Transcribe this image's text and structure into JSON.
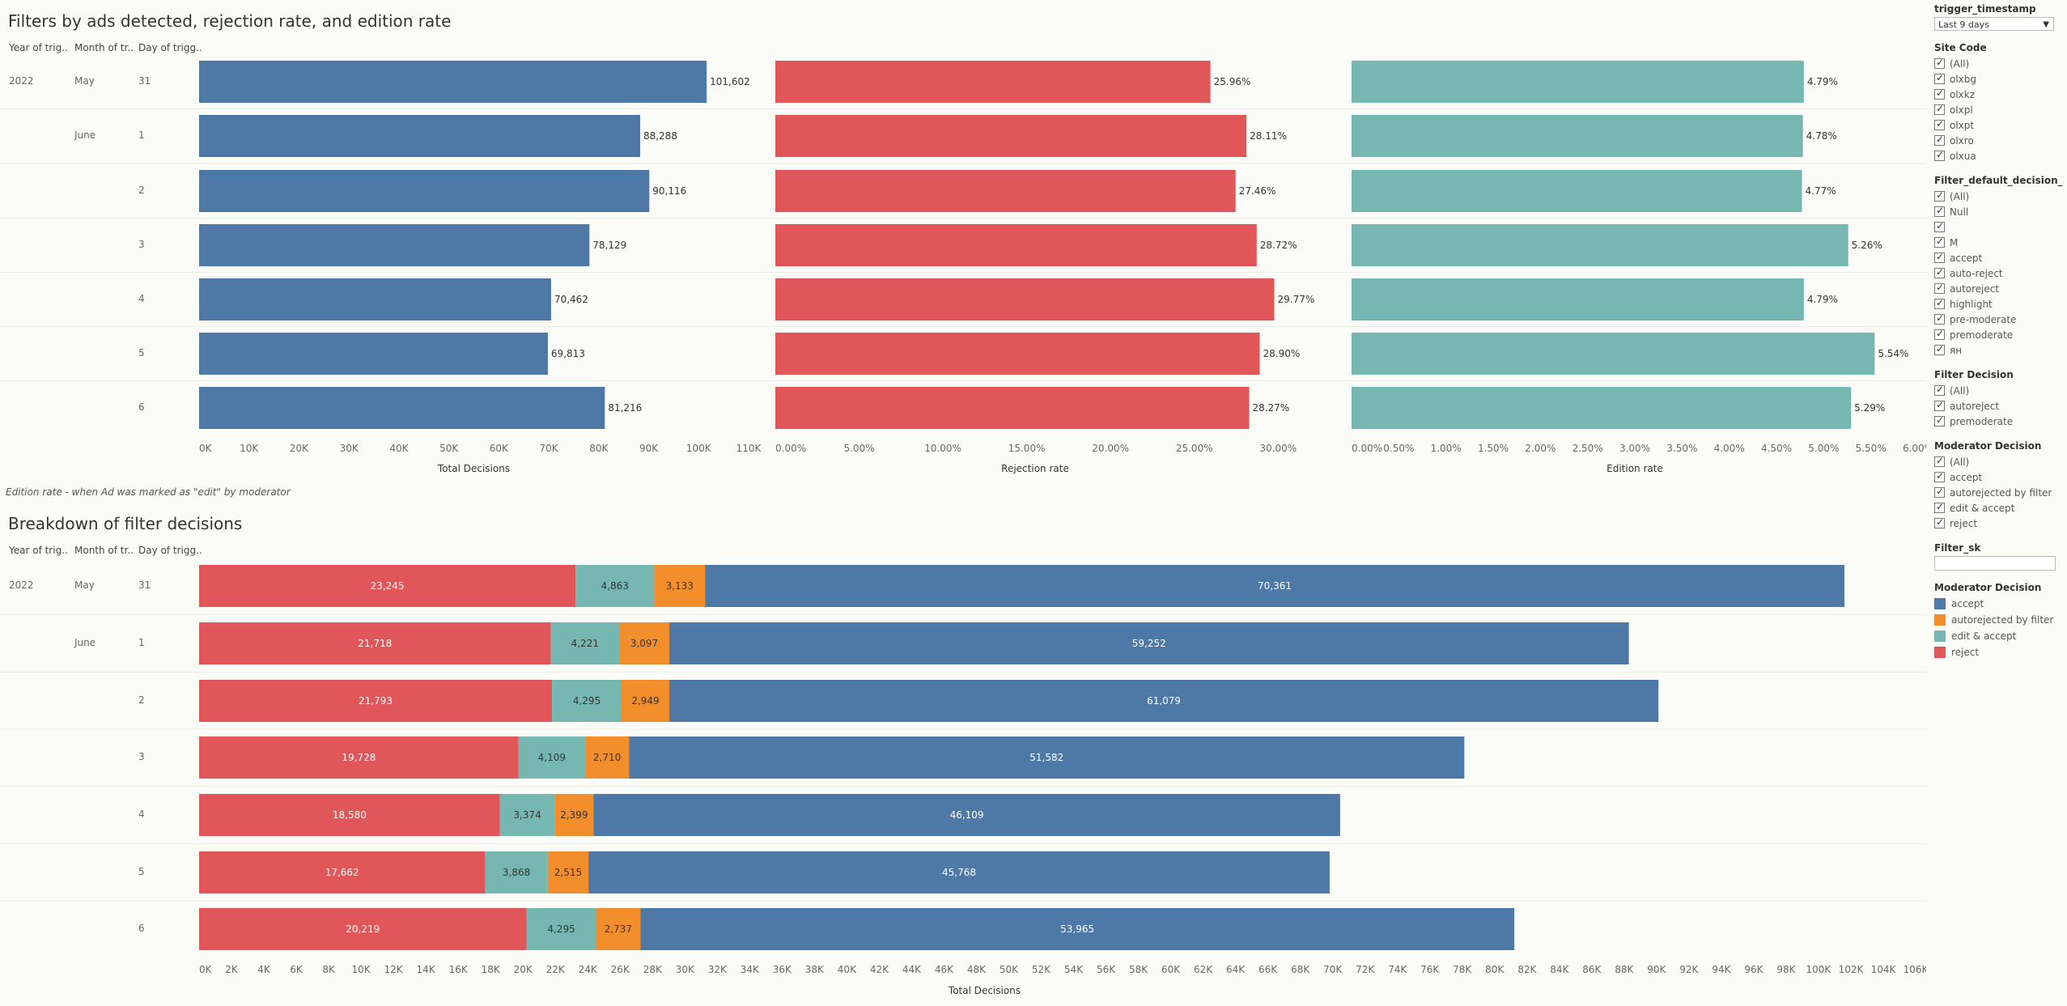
{
  "top": {
    "title": "Filters by ads detected, rejection rate, and edition rate",
    "headers": {
      "year": "Year of trig..",
      "month": "Month of tr..",
      "day": "Day of trigg.."
    },
    "note": "Edition rate - when Ad was marked as \"edit\" by moderator"
  },
  "bottom": {
    "title": "Breakdown of filter decisions",
    "headers": {
      "year": "Year of trig..",
      "month": "Month of tr..",
      "day": "Day of trigg.."
    }
  },
  "rows": [
    {
      "year": "2022",
      "month": "May",
      "day": "31"
    },
    {
      "year": "",
      "month": "June",
      "day": "1"
    },
    {
      "year": "",
      "month": "",
      "day": "2"
    },
    {
      "year": "",
      "month": "",
      "day": "3"
    },
    {
      "year": "",
      "month": "",
      "day": "4"
    },
    {
      "year": "",
      "month": "",
      "day": "5"
    },
    {
      "year": "",
      "month": "",
      "day": "6"
    }
  ],
  "chart_data": [
    {
      "type": "bar",
      "orientation": "horizontal",
      "xlabel": "Total Decisions",
      "xlim": [
        0,
        110000
      ],
      "ticks": [
        0,
        10000,
        20000,
        30000,
        40000,
        50000,
        60000,
        70000,
        80000,
        90000,
        100000,
        110000
      ],
      "tick_labels": [
        "0K",
        "10K",
        "20K",
        "30K",
        "40K",
        "50K",
        "60K",
        "70K",
        "80K",
        "90K",
        "100K",
        "110K"
      ],
      "values": [
        101602,
        88288,
        90116,
        78129,
        70462,
        69813,
        81216
      ],
      "labels": [
        "101,602",
        "88,288",
        "90,116",
        "78,129",
        "70,462",
        "69,813",
        "81,216"
      ],
      "color": "#4e79a7"
    },
    {
      "type": "bar",
      "orientation": "horizontal",
      "xlabel": "Rejection rate",
      "xlim": [
        0,
        31
      ],
      "ticks": [
        0,
        5,
        10,
        15,
        20,
        25,
        30
      ],
      "tick_labels": [
        "0.00%",
        "5.00%",
        "10.00%",
        "15.00%",
        "20.00%",
        "25.00%",
        "30.00%"
      ],
      "values": [
        25.96,
        28.11,
        27.46,
        28.72,
        29.77,
        28.9,
        28.27
      ],
      "labels": [
        "25.96%",
        "28.11%",
        "27.46%",
        "28.72%",
        "29.77%",
        "28.90%",
        "28.27%"
      ],
      "color": "#e15759"
    },
    {
      "type": "bar",
      "orientation": "horizontal",
      "xlabel": "Edition rate",
      "xlim": [
        0,
        6
      ],
      "ticks": [
        0,
        0.5,
        1,
        1.5,
        2,
        2.5,
        3,
        3.5,
        4,
        4.5,
        5,
        5.5,
        6
      ],
      "tick_labels": [
        "0.00%",
        "0.50%",
        "1.00%",
        "1.50%",
        "2.00%",
        "2.50%",
        "3.00%",
        "3.50%",
        "4.00%",
        "4.50%",
        "5.00%",
        "5.50%",
        "6.00%"
      ],
      "values": [
        4.79,
        4.78,
        4.77,
        5.26,
        4.79,
        5.54,
        5.29
      ],
      "labels": [
        "4.79%",
        "4.78%",
        "4.77%",
        "5.26%",
        "4.79%",
        "5.54%",
        "5.29%"
      ],
      "color": "#76b7b2"
    },
    {
      "type": "bar",
      "orientation": "horizontal",
      "stacked": true,
      "xlabel": "Total Decisions",
      "xlim": [
        0,
        107000
      ],
      "tick_step": 2000,
      "tick_max": 106000,
      "series": [
        {
          "name": "reject",
          "color": "#e15759",
          "values": [
            23245,
            21718,
            21793,
            19728,
            18580,
            17662,
            20219
          ],
          "labels": [
            "23,245",
            "21,718",
            "21,793",
            "19,728",
            "18,580",
            "17,662",
            "20,219"
          ]
        },
        {
          "name": "edit & accept",
          "color": "#76b7b2",
          "values": [
            4863,
            4221,
            4295,
            4109,
            3374,
            3868,
            4295
          ],
          "labels": [
            "4,863",
            "4,221",
            "4,295",
            "4,109",
            "3,374",
            "3,868",
            "4,295"
          ]
        },
        {
          "name": "autorejected by filter",
          "color": "#f28e2b",
          "values": [
            3133,
            3097,
            2949,
            2710,
            2399,
            2515,
            2737
          ],
          "labels": [
            "3,133",
            "3,097",
            "2,949",
            "2,710",
            "2,399",
            "2,515",
            "2,737"
          ]
        },
        {
          "name": "accept",
          "color": "#4e79a7",
          "values": [
            70361,
            59252,
            61079,
            51582,
            46109,
            45768,
            53965
          ],
          "labels": [
            "70,361",
            "59,252",
            "61,079",
            "51,582",
            "46,109",
            "45,768",
            "53,965"
          ]
        }
      ]
    }
  ],
  "sidebar": {
    "timestamp": {
      "title": "trigger_timestamp",
      "value": "Last 9 days"
    },
    "site_code": {
      "title": "Site Code",
      "items": [
        "(All)",
        "olxbg",
        "olxkz",
        "olxpl",
        "olxpt",
        "olxro",
        "olxua"
      ]
    },
    "filter_default": {
      "title": "Filter_default_decision_...",
      "items": [
        "(All)",
        "Null",
        "",
        "M",
        "accept",
        "auto-reject",
        "autoreject",
        "highlight",
        "pre-moderate",
        "premoderate",
        "ян"
      ]
    },
    "filter_decision": {
      "title": "Filter Decision",
      "items": [
        "(All)",
        "autoreject",
        "premoderate"
      ]
    },
    "moderator_decision": {
      "title": "Moderator Decision",
      "items": [
        "(All)",
        "accept",
        "autorejected by filter",
        "edit & accept",
        "reject"
      ]
    },
    "filter_sk": {
      "title": "Filter_sk",
      "value": ""
    },
    "legend": {
      "title": "Moderator Decision",
      "items": [
        {
          "label": "accept",
          "color": "#4e79a7"
        },
        {
          "label": "autorejected by filter",
          "color": "#f28e2b"
        },
        {
          "label": "edit & accept",
          "color": "#76b7b2"
        },
        {
          "label": "reject",
          "color": "#e15759"
        }
      ]
    }
  }
}
